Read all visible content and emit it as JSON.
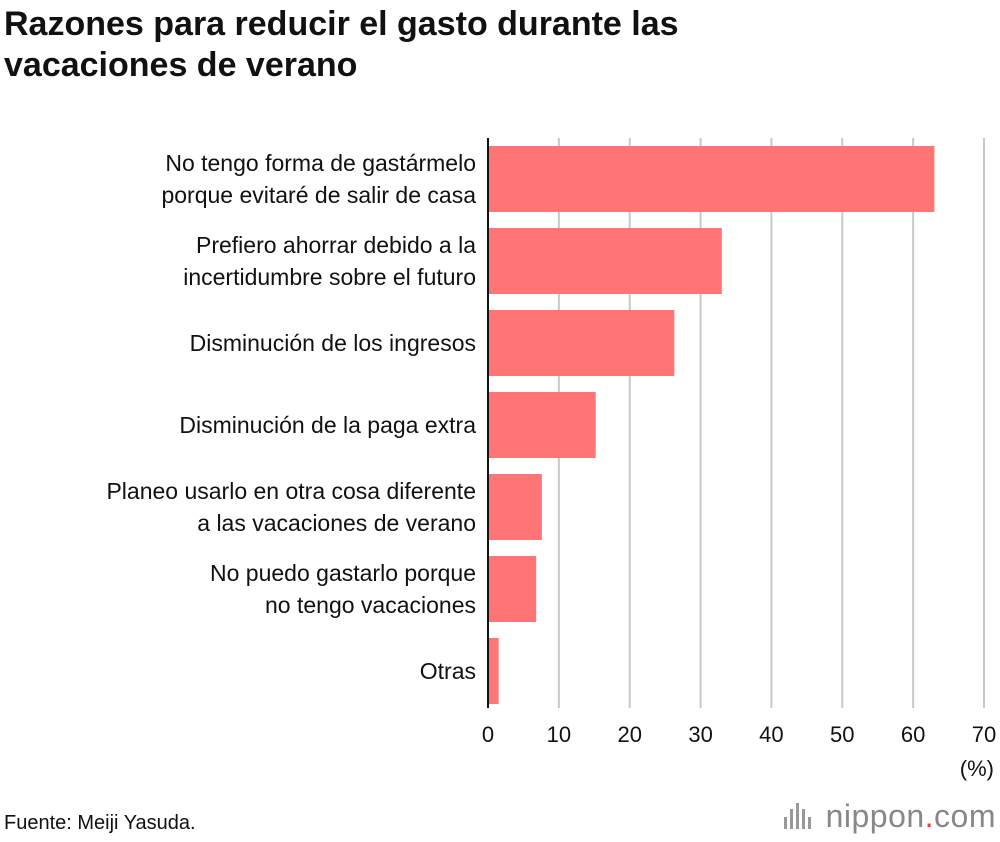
{
  "title_lines": [
    "Razones para reducir el gasto durante las",
    "vacaciones de verano"
  ],
  "source": "Fuente: Meiji Yasuda.",
  "unit_label": "(%)",
  "logo": {
    "name": "nippon",
    "dot": ".",
    "suffix": "com"
  },
  "colors": {
    "bar": "#ff7474",
    "grid": "#c8c8c8",
    "axis": "#111111"
  },
  "chart_data": {
    "type": "bar",
    "orientation": "horizontal",
    "categories": [
      [
        "No tengo forma de gastármelo",
        "porque evitaré de salir de casa"
      ],
      [
        "Prefiero ahorrar debido a la",
        "incertidumbre sobre el futuro"
      ],
      [
        "Disminución de los ingresos"
      ],
      [
        "Disminución de la paga extra"
      ],
      [
        "Planeo usarlo en otra cosa diferente",
        "a las vacaciones de verano"
      ],
      [
        "No puedo gastarlo porque",
        "no tengo vacaciones"
      ],
      [
        "Otras"
      ]
    ],
    "values": [
      63,
      33,
      26.3,
      15.2,
      7.6,
      6.8,
      1.5
    ],
    "xlim": [
      0,
      70
    ],
    "xticks": [
      0,
      10,
      20,
      30,
      40,
      50,
      60,
      70
    ],
    "xlabel": "(%)",
    "grid": true
  }
}
